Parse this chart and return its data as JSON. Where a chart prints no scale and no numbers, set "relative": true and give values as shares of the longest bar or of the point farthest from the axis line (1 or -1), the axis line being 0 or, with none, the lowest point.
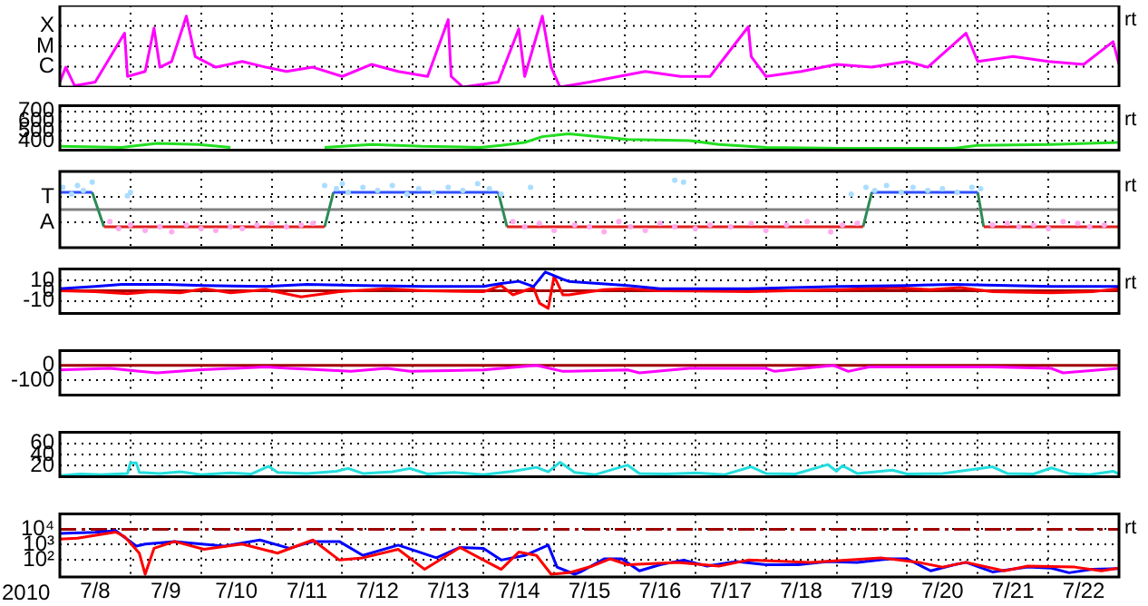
{
  "chart_data": [
    {
      "type": "line",
      "relative": true,
      "xlim": [
        "2010-07-08",
        "2010-07-23"
      ],
      "xticks": [
        {
          "value": "2010-07-09",
          "label": null
        },
        {
          "value": "2010-07-10",
          "label": null
        },
        {
          "value": "2010-07-11",
          "label": null
        },
        {
          "value": "2010-07-12",
          "label": null
        },
        {
          "value": "2010-07-13",
          "label": null
        },
        {
          "value": "2010-07-14",
          "label": null
        },
        {
          "value": "2010-07-15",
          "label": null
        },
        {
          "value": "2010-07-16",
          "label": null
        },
        {
          "value": "2010-07-17",
          "label": null
        },
        {
          "value": "2010-07-18",
          "label": null
        },
        {
          "value": "2010-07-19",
          "label": null
        },
        {
          "value": "2010-07-20",
          "label": null
        },
        {
          "value": "2010-07-21",
          "label": null
        },
        {
          "value": "2010-07-22",
          "label": null
        }
      ],
      "grid": true,
      "tick_labels": "y",
      "y2label": "rt",
      "annotations": [
        "X",
        "M",
        "C"
      ],
      "series": [
        {
          "color": "#ff00ff",
          "x": [
            "2010-07-08T00:00",
            "2010-07-08T02:00",
            "2010-07-08T05:00",
            "2010-07-08T12:00",
            "2010-07-08T22:00",
            "2010-07-08T23:00",
            "2010-07-09T05:00",
            "2010-07-09T08:00",
            "2010-07-09T10:00",
            "2010-07-09T14:00",
            "2010-07-09T19:00",
            "2010-07-09T22:00",
            "2010-07-10T05:00",
            "2010-07-10T14:00",
            "2010-07-10T22:00",
            "2010-07-11T05:00",
            "2010-07-11T14:00",
            "2010-07-12T00:00",
            "2010-07-12T10:00",
            "2010-07-12T19:00",
            "2010-07-13T05:00",
            "2010-07-13T12:00",
            "2010-07-13T13:00",
            "2010-07-13T17:00",
            "2010-07-14T05:00",
            "2010-07-14T12:00",
            "2010-07-14T14:00",
            "2010-07-14T20:00",
            "2010-07-14T23:00",
            "2010-07-15T02:00",
            "2010-07-15T12:00",
            "2010-07-15T22:00",
            "2010-07-16T07:00",
            "2010-07-16T19:00",
            "2010-07-17T05:00",
            "2010-07-17T18:00",
            "2010-07-17T19:00",
            "2010-07-18T00:00",
            "2010-07-18T12:00",
            "2010-07-19T00:00",
            "2010-07-19T12:00",
            "2010-07-20T00:00",
            "2010-07-20T07:00",
            "2010-07-20T20:00",
            "2010-07-21T00:00",
            "2010-07-21T12:00",
            "2010-07-22T00:00",
            "2010-07-22T12:00",
            "2010-07-22T22:00",
            "2010-07-23T00:00"
          ],
          "values": [
            0.07,
            0.28,
            0.02,
            0.07,
            0.76,
            0.15,
            0.22,
            0.83,
            0.28,
            0.36,
            1,
            0.43,
            0.28,
            0.36,
            0.28,
            0.22,
            0.28,
            0.15,
            0.32,
            0.22,
            0.15,
            0.95,
            0.15,
            0,
            0.07,
            0.82,
            0.15,
            1,
            0.28,
            0,
            0.07,
            0.15,
            0.22,
            0.15,
            0.15,
            0.85,
            0.43,
            0.15,
            0.22,
            0.32,
            0.28,
            0.36,
            0.28,
            0.76,
            0.36,
            0.43,
            0.36,
            0.32,
            0.64,
            0.32
          ]
        }
      ]
    },
    {
      "type": "line",
      "xlim": [
        "2010-07-08",
        "2010-07-23"
      ],
      "xticks": [
        {
          "value": "2010-07-09",
          "label": null
        },
        {
          "value": "2010-07-10",
          "label": null
        },
        {
          "value": "2010-07-11",
          "label": null
        },
        {
          "value": "2010-07-12",
          "label": null
        },
        {
          "value": "2010-07-13",
          "label": null
        },
        {
          "value": "2010-07-14",
          "label": null
        },
        {
          "value": "2010-07-15",
          "label": null
        },
        {
          "value": "2010-07-16",
          "label": null
        },
        {
          "value": "2010-07-17",
          "label": null
        },
        {
          "value": "2010-07-18",
          "label": null
        },
        {
          "value": "2010-07-19",
          "label": null
        },
        {
          "value": "2010-07-20",
          "label": null
        },
        {
          "value": "2010-07-21",
          "label": null
        },
        {
          "value": "2010-07-22",
          "label": null
        }
      ],
      "ylim": [
        300,
        760
      ],
      "yticks": [
        700,
        600,
        500,
        400
      ],
      "grid": true,
      "tick_labels": "y",
      "y2label": "rt",
      "series": [
        {
          "color": "#22dd22",
          "x": [
            "2010-07-08T00:00",
            "2010-07-08T21:00",
            "2010-07-09T09:00",
            "2010-07-09T23:00",
            "2010-07-10T10:00",
            "2010-07-10T12:00",
            "2010-07-11T18:00",
            "2010-07-12T10:00",
            "2010-07-13T03:00",
            "2010-07-13T23:00",
            "2010-07-14T06:00",
            "2010-07-14T14:00",
            "2010-07-14T20:00",
            "2010-07-15T02:00",
            "2010-07-15T05:00",
            "2010-07-16T01:00",
            "2010-07-16T22:00",
            "2010-07-17T08:00",
            "2010-07-18T00:00",
            "2010-07-19T01:00",
            "2010-07-20T00:00",
            "2010-07-20T16:00",
            "2010-07-21T00:00",
            "2010-07-22T01:00",
            "2010-07-23T00:00"
          ],
          "values": [
            340,
            330,
            370,
            360,
            330,
            null,
            330,
            360,
            340,
            330,
            350,
            380,
            440,
            460,
            470,
            410,
            400,
            360,
            330,
            320,
            320,
            320,
            350,
            360,
            380
          ]
        }
      ]
    },
    {
      "type": "line",
      "relative": true,
      "xlim": [
        "2010-07-08",
        "2010-07-23"
      ],
      "xticks": [
        {
          "value": "2010-07-09",
          "label": null
        },
        {
          "value": "2010-07-10",
          "label": null
        },
        {
          "value": "2010-07-11",
          "label": null
        },
        {
          "value": "2010-07-12",
          "label": null
        },
        {
          "value": "2010-07-13",
          "label": null
        },
        {
          "value": "2010-07-14",
          "label": null
        },
        {
          "value": "2010-07-15",
          "label": null
        },
        {
          "value": "2010-07-16",
          "label": null
        },
        {
          "value": "2010-07-17",
          "label": null
        },
        {
          "value": "2010-07-18",
          "label": null
        },
        {
          "value": "2010-07-19",
          "label": null
        },
        {
          "value": "2010-07-20",
          "label": null
        },
        {
          "value": "2010-07-21",
          "label": null
        },
        {
          "value": "2010-07-22",
          "label": null
        }
      ],
      "grid": true,
      "tick_labels": "y",
      "y2label": "rt",
      "annotations": [
        "T",
        "A"
      ],
      "ref_lines": [
        {
          "axis": "y",
          "value": 0,
          "color": "#808080"
        }
      ],
      "series": [
        {
          "type": "scatter",
          "color": "#aaddff",
          "x": [
            "2010-07-08T01:00",
            "2010-07-08T04:00",
            "2010-07-08T06:00",
            "2010-07-08T08:00",
            "2010-07-08T11:00",
            "2010-07-08T23:00",
            "2010-07-09T00:00",
            "2010-07-11T18:00",
            "2010-07-11T22:00",
            "2010-07-12T00:00",
            "2010-07-12T02:00",
            "2010-07-12T07:00",
            "2010-07-12T12:00",
            "2010-07-12T17:00",
            "2010-07-12T22:00",
            "2010-07-13T02:00",
            "2010-07-13T07:00",
            "2010-07-13T12:00",
            "2010-07-13T17:00",
            "2010-07-13T22:00",
            "2010-07-14T02:00",
            "2010-07-14T06:00",
            "2010-07-14T16:00",
            "2010-07-16T17:00",
            "2010-07-16T20:00",
            "2010-07-19T05:00",
            "2010-07-19T10:00",
            "2010-07-19T13:00",
            "2010-07-19T17:00",
            "2010-07-19T22:00",
            "2010-07-20T02:00",
            "2010-07-20T07:00",
            "2010-07-20T12:00",
            "2010-07-20T17:00",
            "2010-07-20T22:00",
            "2010-07-21T01:00"
          ],
          "values": [
            0.76,
            0.53,
            0.82,
            0.65,
            0.94,
            0.47,
            0.59,
            0.82,
            0.71,
            0.88,
            0.59,
            0.76,
            0.65,
            0.82,
            0.53,
            0.71,
            0.59,
            0.76,
            0.65,
            0.88,
            0.71,
            0.53,
            0.76,
            1,
            0.94,
            0.53,
            0.76,
            0.65,
            0.82,
            0.59,
            0.76,
            0.65,
            0.71,
            0.59,
            0.76,
            0.71
          ]
        },
        {
          "type": "scatter",
          "color": "#ffaaee",
          "x": [
            "2010-07-08T17:00",
            "2010-07-08T20:00",
            "2010-07-09T00:00",
            "2010-07-09T05:00",
            "2010-07-09T10:00",
            "2010-07-09T14:00",
            "2010-07-09T19:00",
            "2010-07-10T00:00",
            "2010-07-10T05:00",
            "2010-07-10T10:00",
            "2010-07-10T14:00",
            "2010-07-10T19:00",
            "2010-07-11T00:00",
            "2010-07-11T05:00",
            "2010-07-11T10:00",
            "2010-07-11T14:00",
            "2010-07-14T10:00",
            "2010-07-14T14:00",
            "2010-07-14T19:00",
            "2010-07-15T00:00",
            "2010-07-15T07:00",
            "2010-07-15T12:00",
            "2010-07-15T17:00",
            "2010-07-15T22:00",
            "2010-07-16T02:00",
            "2010-07-16T07:00",
            "2010-07-16T12:00",
            "2010-07-16T17:00",
            "2010-07-17T00:00",
            "2010-07-17T05:00",
            "2010-07-17T12:00",
            "2010-07-17T19:00",
            "2010-07-18T00:00",
            "2010-07-18T07:00",
            "2010-07-18T14:00",
            "2010-07-18T22:00",
            "2010-07-19T02:00",
            "2010-07-19T07:00",
            "2010-07-21T05:00",
            "2010-07-21T10:00",
            "2010-07-21T14:00",
            "2010-07-21T19:00",
            "2010-07-22T00:00",
            "2010-07-22T05:00",
            "2010-07-22T10:00",
            "2010-07-22T14:00",
            "2010-07-22T19:00"
          ],
          "values": [
            -0.41,
            -0.65,
            -0.53,
            -0.71,
            -0.59,
            -0.76,
            -0.53,
            -0.65,
            -0.71,
            -0.59,
            -0.65,
            -0.53,
            -0.47,
            -0.59,
            -0.53,
            -0.47,
            -0.41,
            -0.59,
            -0.47,
            -0.71,
            -0.53,
            -0.59,
            -0.76,
            -0.41,
            -0.59,
            -0.71,
            -0.47,
            -0.59,
            -0.65,
            -0.53,
            -0.59,
            -0.47,
            -0.71,
            -0.53,
            -0.41,
            -0.76,
            -0.53,
            -0.47,
            -0.53,
            -0.47,
            -0.59,
            -0.53,
            -0.65,
            -0.41,
            -0.47,
            -0.59,
            -0.53
          ]
        },
        {
          "color": "#3050ff",
          "x": [
            "2010-07-08T00:00",
            "2010-07-08T11:00",
            "2010-07-08T12:00",
            "2010-07-11T21:00",
            "2010-07-14T05:00",
            "2010-07-14T07:00",
            "2010-07-19T12:00",
            "2010-07-21T00:00"
          ],
          "values": [
            0.59,
            0.59,
            null,
            0.59,
            0.59,
            null,
            0.59,
            0.59
          ]
        },
        {
          "color": "#e02020",
          "x": [
            "2010-07-08T15:00",
            "2010-07-11T18:00",
            "2010-07-11T19:00",
            "2010-07-14T08:00",
            "2010-07-19T09:00",
            "2010-07-19T11:00",
            "2010-07-21T02:00",
            "2010-07-23T00:00"
          ],
          "values": [
            -0.59,
            -0.59,
            null,
            -0.59,
            -0.59,
            null,
            -0.59,
            -0.59
          ]
        },
        {
          "color": "#2e8b57",
          "x": [
            "2010-07-08T11:00",
            "2010-07-08T15:00",
            "2010-07-08T17:00",
            "2010-07-11T18:00",
            "2010-07-11T21:00",
            "2010-07-12T00:00",
            "2010-07-14T05:00",
            "2010-07-14T08:00",
            "2010-07-15T00:00",
            "2010-07-19T09:00",
            "2010-07-19T12:00",
            "2010-07-20T00:00",
            "2010-07-21T00:00",
            "2010-07-21T02:00"
          ],
          "values": [
            0.59,
            -0.59,
            null,
            -0.59,
            0.59,
            null,
            0.59,
            -0.59,
            null,
            -0.59,
            0.59,
            null,
            0.59,
            -0.59
          ]
        }
      ]
    },
    {
      "type": "line",
      "xlim": [
        "2010-07-08",
        "2010-07-23"
      ],
      "xticks": [
        {
          "value": "2010-07-09",
          "label": null
        },
        {
          "value": "2010-07-10",
          "label": null
        },
        {
          "value": "2010-07-11",
          "label": null
        },
        {
          "value": "2010-07-12",
          "label": null
        },
        {
          "value": "2010-07-13",
          "label": null
        },
        {
          "value": "2010-07-14",
          "label": null
        },
        {
          "value": "2010-07-15",
          "label": null
        },
        {
          "value": "2010-07-16",
          "label": null
        },
        {
          "value": "2010-07-17",
          "label": null
        },
        {
          "value": "2010-07-18",
          "label": null
        },
        {
          "value": "2010-07-19",
          "label": null
        },
        {
          "value": "2010-07-20",
          "label": null
        },
        {
          "value": "2010-07-21",
          "label": null
        },
        {
          "value": "2010-07-22",
          "label": null
        }
      ],
      "ylim": [
        -22,
        21
      ],
      "yticks": [
        10,
        0,
        -10
      ],
      "grid": true,
      "tick_labels": "y",
      "y2label": "rt",
      "ref_lines": [
        {
          "axis": "y",
          "value": 0,
          "color": "#a00000"
        }
      ],
      "series": [
        {
          "color": "#0000ff",
          "x": [
            "2010-07-08T00:00",
            "2010-07-08T12:00",
            "2010-07-08T21:00",
            "2010-07-09T12:00",
            "2010-07-10T01:00",
            "2010-07-10T22:00",
            "2010-07-11T12:00",
            "2010-07-12T07:00",
            "2010-07-13T04:00",
            "2010-07-14T00:00",
            "2010-07-14T06:00",
            "2010-07-14T12:00",
            "2010-07-14T17:00",
            "2010-07-14T21:00",
            "2010-07-15T03:00",
            "2010-07-15T05:00",
            "2010-07-16T01:00",
            "2010-07-16T12:00",
            "2010-07-17T18:00",
            "2010-07-19T01:00",
            "2010-07-20T00:00",
            "2010-07-20T16:00",
            "2010-07-22T01:00",
            "2010-07-23T00:00"
          ],
          "values": [
            2,
            4,
            6,
            6,
            5,
            4,
            6,
            5,
            4,
            4,
            7,
            9,
            4,
            18,
            11,
            9,
            5,
            2,
            2,
            4,
            5,
            6,
            4,
            4
          ]
        },
        {
          "color": "#ff0000",
          "x": [
            "2010-07-08T00:00",
            "2010-07-08T12:00",
            "2010-07-08T23:00",
            "2010-07-09T07:00",
            "2010-07-09T17:00",
            "2010-07-10T01:00",
            "2010-07-10T10:00",
            "2010-07-10T22:00",
            "2010-07-11T10:00",
            "2010-07-11T23:00",
            "2010-07-12T15:00",
            "2010-07-13T04:00",
            "2010-07-14T00:00",
            "2010-07-14T06:00",
            "2010-07-14T10:00",
            "2010-07-14T17:00",
            "2010-07-14T19:00",
            "2010-07-14T22:00",
            "2010-07-15T00:00",
            "2010-07-15T03:00",
            "2010-07-15T05:00",
            "2010-07-15T17:00",
            "2010-07-16T01:00",
            "2010-07-16T12:00",
            "2010-07-17T18:00",
            "2010-07-19T01:00",
            "2010-07-19T20:00",
            "2010-07-20T08:00",
            "2010-07-20T18:00",
            "2010-07-21T05:00",
            "2010-07-22T01:00",
            "2010-07-22T15:00",
            "2010-07-23T00:00"
          ],
          "values": [
            0,
            -1,
            -3,
            -1,
            -2,
            2,
            -2,
            1,
            -6,
            -1,
            2,
            0,
            -1,
            5,
            -4,
            3,
            -12,
            -17,
            14,
            -4,
            -4,
            1,
            2,
            0,
            -1,
            1,
            3,
            1,
            3,
            -1,
            -2,
            -1,
            2
          ]
        }
      ]
    },
    {
      "type": "line",
      "xlim": [
        "2010-07-08",
        "2010-07-23"
      ],
      "xticks": [
        {
          "value": "2010-07-09",
          "label": null
        },
        {
          "value": "2010-07-10",
          "label": null
        },
        {
          "value": "2010-07-11",
          "label": null
        },
        {
          "value": "2010-07-12",
          "label": null
        },
        {
          "value": "2010-07-13",
          "label": null
        },
        {
          "value": "2010-07-14",
          "label": null
        },
        {
          "value": "2010-07-15",
          "label": null
        },
        {
          "value": "2010-07-16",
          "label": null
        },
        {
          "value": "2010-07-17",
          "label": null
        },
        {
          "value": "2010-07-18",
          "label": null
        },
        {
          "value": "2010-07-19",
          "label": null
        },
        {
          "value": "2010-07-20",
          "label": null
        },
        {
          "value": "2010-07-21",
          "label": null
        },
        {
          "value": "2010-07-22",
          "label": null
        }
      ],
      "ylim": [
        -200,
        100
      ],
      "yticks": [
        0,
        -100
      ],
      "grid": true,
      "tick_labels": "y",
      "ref_lines": [
        {
          "axis": "y",
          "value": 0,
          "color": "#a00000"
        }
      ],
      "series": [
        {
          "color": "#ff00ff",
          "x": [
            "2010-07-08T00:00",
            "2010-07-08T17:00",
            "2010-07-09T03:00",
            "2010-07-09T09:00",
            "2010-07-09T23:00",
            "2010-07-10T22:00",
            "2010-07-11T06:00",
            "2010-07-12T03:00",
            "2010-07-12T15:00",
            "2010-07-12T23:00",
            "2010-07-14T00:00",
            "2010-07-14T18:00",
            "2010-07-15T03:00",
            "2010-07-15T05:00",
            "2010-07-16T01:00",
            "2010-07-16T05:00",
            "2010-07-16T22:00",
            "2010-07-18T00:00",
            "2010-07-18T03:00",
            "2010-07-18T23:00",
            "2010-07-19T04:00",
            "2010-07-19T11:00",
            "2010-07-20T00:00",
            "2010-07-21T05:00",
            "2010-07-22T01:00",
            "2010-07-22T05:00",
            "2010-07-23T00:00"
          ],
          "values": [
            -30,
            -20,
            -40,
            -50,
            -30,
            -10,
            -20,
            -40,
            -20,
            -40,
            -30,
            0,
            -40,
            -40,
            -30,
            -50,
            -20,
            -20,
            -40,
            0,
            -40,
            -10,
            -10,
            -10,
            -20,
            -50,
            -20
          ]
        }
      ]
    },
    {
      "type": "line",
      "xlim": [
        "2010-07-08",
        "2010-07-23"
      ],
      "xticks": [
        {
          "value": "2010-07-09",
          "label": null
        },
        {
          "value": "2010-07-10",
          "label": null
        },
        {
          "value": "2010-07-11",
          "label": null
        },
        {
          "value": "2010-07-12",
          "label": null
        },
        {
          "value": "2010-07-13",
          "label": null
        },
        {
          "value": "2010-07-14",
          "label": null
        },
        {
          "value": "2010-07-15",
          "label": null
        },
        {
          "value": "2010-07-16",
          "label": null
        },
        {
          "value": "2010-07-17",
          "label": null
        },
        {
          "value": "2010-07-18",
          "label": null
        },
        {
          "value": "2010-07-19",
          "label": null
        },
        {
          "value": "2010-07-20",
          "label": null
        },
        {
          "value": "2010-07-21",
          "label": null
        },
        {
          "value": "2010-07-22",
          "label": null
        }
      ],
      "ylim": [
        0,
        80
      ],
      "yticks": [
        60,
        40,
        20
      ],
      "grid": true,
      "tick_labels": "y",
      "series": [
        {
          "color": "#22dddd",
          "x": [
            "2010-07-08T00:00",
            "2010-07-08T07:00",
            "2010-07-08T14:00",
            "2010-07-08T23:00",
            "2010-07-09T00:00",
            "2010-07-09T02:00",
            "2010-07-09T03:00",
            "2010-07-09T10:00",
            "2010-07-09T17:00",
            "2010-07-10T00:00",
            "2010-07-10T10:00",
            "2010-07-10T17:00",
            "2010-07-10T23:00",
            "2010-07-11T02:00",
            "2010-07-11T12:00",
            "2010-07-11T22:00",
            "2010-07-12T02:00",
            "2010-07-12T07:00",
            "2010-07-12T17:00",
            "2010-07-12T23:00",
            "2010-07-13T05:00",
            "2010-07-13T14:00",
            "2010-07-14T00:00",
            "2010-07-14T10:00",
            "2010-07-14T18:00",
            "2010-07-14T22:00",
            "2010-07-15T02:00",
            "2010-07-15T07:00",
            "2010-07-15T14:00",
            "2010-07-16T01:00",
            "2010-07-16T05:00",
            "2010-07-16T14:00",
            "2010-07-17T00:00",
            "2010-07-17T10:00",
            "2010-07-17T19:00",
            "2010-07-18T00:00",
            "2010-07-18T10:00",
            "2010-07-18T21:00",
            "2010-07-19T00:00",
            "2010-07-19T02:00",
            "2010-07-19T07:00",
            "2010-07-19T19:00",
            "2010-07-20T00:00",
            "2010-07-20T12:00",
            "2010-07-21T05:00",
            "2010-07-21T10:00",
            "2010-07-21T19:00",
            "2010-07-22T01:00",
            "2010-07-22T07:00",
            "2010-07-22T14:00",
            "2010-07-22T22:00",
            "2010-07-23T00:00"
          ],
          "values": [
            2,
            5,
            4,
            6,
            25,
            25,
            8,
            6,
            9,
            4,
            7,
            5,
            19,
            8,
            6,
            10,
            15,
            6,
            9,
            15,
            5,
            8,
            4,
            10,
            17,
            9,
            26,
            8,
            4,
            21,
            6,
            5,
            7,
            4,
            18,
            6,
            5,
            22,
            10,
            20,
            6,
            12,
            5,
            6,
            18,
            6,
            5,
            16,
            6,
            4,
            10,
            5
          ]
        }
      ]
    },
    {
      "type": "line",
      "xlim": [
        "2010-07-08",
        "2010-07-23"
      ],
      "xticks": [
        {
          "value": "2010-07-08T12:00",
          "label": "7/8"
        },
        {
          "value": "2010-07-09",
          "label": null
        },
        {
          "value": "2010-07-09T12:00",
          "label": "7/9"
        },
        {
          "value": "2010-07-10",
          "label": null
        },
        {
          "value": "2010-07-10T12:00",
          "label": "7/10"
        },
        {
          "value": "2010-07-11",
          "label": null
        },
        {
          "value": "2010-07-11T12:00",
          "label": "7/11"
        },
        {
          "value": "2010-07-12",
          "label": null
        },
        {
          "value": "2010-07-12T12:00",
          "label": "7/12"
        },
        {
          "value": "2010-07-13",
          "label": null
        },
        {
          "value": "2010-07-13T12:00",
          "label": "7/13"
        },
        {
          "value": "2010-07-14",
          "label": null
        },
        {
          "value": "2010-07-14T12:00",
          "label": "7/14"
        },
        {
          "value": "2010-07-15",
          "label": null
        },
        {
          "value": "2010-07-15T12:00",
          "label": "7/15"
        },
        {
          "value": "2010-07-16",
          "label": null
        },
        {
          "value": "2010-07-16T12:00",
          "label": "7/16"
        },
        {
          "value": "2010-07-17",
          "label": null
        },
        {
          "value": "2010-07-17T12:00",
          "label": "7/17"
        },
        {
          "value": "2010-07-18",
          "label": null
        },
        {
          "value": "2010-07-18T12:00",
          "label": "7/18"
        },
        {
          "value": "2010-07-19",
          "label": null
        },
        {
          "value": "2010-07-19T12:00",
          "label": "7/19"
        },
        {
          "value": "2010-07-20",
          "label": null
        },
        {
          "value": "2010-07-20T12:00",
          "label": "7/20"
        },
        {
          "value": "2010-07-21",
          "label": null
        },
        {
          "value": "2010-07-21T12:00",
          "label": "7/21"
        },
        {
          "value": "2010-07-22",
          "label": null
        },
        {
          "value": "2010-07-22T12:00",
          "label": "7/22"
        }
      ],
      "xlabel": "2010",
      "ylim": [
        8,
        100000
      ],
      "yticks": [
        {
          "value": 10000,
          "label": "10⁴"
        },
        {
          "value": 1000,
          "label": "10³"
        },
        {
          "value": 100,
          "label": "10²"
        }
      ],
      "log": true,
      "grid": true,
      "y2label": "rt",
      "ref_lines": [
        {
          "axis": "y",
          "value": 10000,
          "color": "#a00000",
          "line_style": "dashed"
        }
      ],
      "series": [
        {
          "color": "#ff0000",
          "x": [
            "2010-07-08T00:00",
            "2010-07-08T06:00",
            "2010-07-08T19:00",
            "2010-07-08T22:00",
            "2010-07-09T03:00",
            "2010-07-09T05:00",
            "2010-07-09T08:00",
            "2010-07-09T15:00",
            "2010-07-10T01:00",
            "2010-07-10T14:00",
            "2010-07-11T02:00",
            "2010-07-11T14:00",
            "2010-07-11T23:00",
            "2010-07-12T07:00",
            "2010-07-12T19:00",
            "2010-07-13T04:00",
            "2010-07-13T16:00",
            "2010-07-13T22:00",
            "2010-07-14T06:00",
            "2010-07-14T12:00",
            "2010-07-14T18:00",
            "2010-07-14T23:00",
            "2010-07-15T05:00",
            "2010-07-15T13:00",
            "2010-07-15T19:00",
            "2010-07-16T01:00",
            "2010-07-16T18:00",
            "2010-07-17T08:00",
            "2010-07-17T18:00",
            "2010-07-18T15:00",
            "2010-07-19T15:00",
            "2010-07-20T04:00",
            "2010-07-20T12:00",
            "2010-07-20T20:00",
            "2010-07-21T09:00",
            "2010-07-21T17:00",
            "2010-07-22T09:00",
            "2010-07-22T18:00",
            "2010-07-23T00:00"
          ],
          "values": [
            2300,
            2600,
            6600,
            3300,
            280,
            12,
            580,
            1600,
            500,
            1100,
            280,
            2000,
            100,
            140,
            500,
            25,
            660,
            160,
            25,
            330,
            200,
            12,
            15,
            41,
            120,
            50,
            71,
            41,
            100,
            71,
            140,
            71,
            35,
            71,
            20,
            41,
            35,
            20,
            30
          ]
        },
        {
          "color": "#0000ff",
          "x": [
            "2010-07-08T00:00",
            "2010-07-08T12:00",
            "2010-07-08T19:00",
            "2010-07-09T02:00",
            "2010-07-09T05:00",
            "2010-07-09T15:00",
            "2010-07-10T08:00",
            "2010-07-10T20:00",
            "2010-07-11T06:00",
            "2010-07-11T14:00",
            "2010-07-11T23:00",
            "2010-07-12T07:00",
            "2010-07-12T19:00",
            "2010-07-13T08:00",
            "2010-07-13T16:00",
            "2010-07-14T00:00",
            "2010-07-14T06:00",
            "2010-07-14T14:00",
            "2010-07-14T22:00",
            "2010-07-15T01:00",
            "2010-07-15T07:00",
            "2010-07-15T09:00",
            "2010-07-15T17:00",
            "2010-07-15T23:00",
            "2010-07-16T05:00",
            "2010-07-16T12:00",
            "2010-07-16T20:00",
            "2010-07-17T04:00",
            "2010-07-17T14:00",
            "2010-07-18T00:00",
            "2010-07-18T11:00",
            "2010-07-18T21:00",
            "2010-07-19T07:00",
            "2010-07-19T18:00",
            "2010-07-20T00:00",
            "2010-07-20T08:00",
            "2010-07-20T16:00",
            "2010-07-20T20:00",
            "2010-07-21T05:00",
            "2010-07-21T17:00",
            "2010-07-22T01:00",
            "2010-07-22T07:00",
            "2010-07-22T15:00",
            "2010-07-23T00:00"
          ],
          "values": [
            5400,
            6300,
            8100,
            810,
            1100,
            1600,
            810,
            2000,
            580,
            1600,
            1600,
            200,
            930,
            140,
            660,
            580,
            100,
            200,
            930,
            35,
            12,
            17,
            120,
            120,
            20,
            50,
            100,
            41,
            81,
            50,
            50,
            81,
            71,
            120,
            120,
            20,
            50,
            71,
            17,
            35,
            30,
            15,
            25,
            28
          ]
        }
      ]
    }
  ]
}
